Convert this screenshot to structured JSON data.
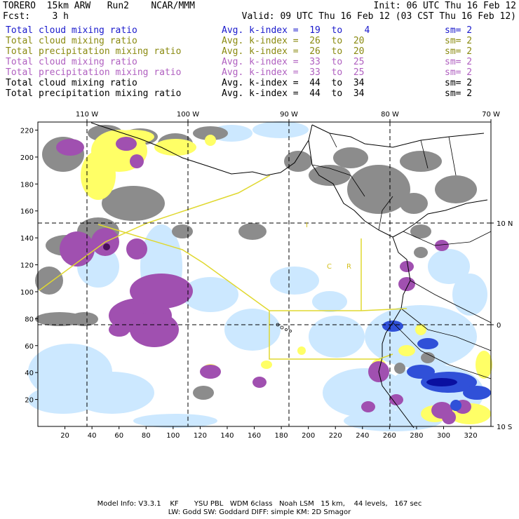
{
  "header": {
    "model": "TORERO  15km ARW   Run2    NCAR/MMM",
    "init": "Init: 06 UTC Thu 16 Feb 12",
    "fcst": "Fcst:    3 h",
    "valid": "Valid: 09 UTC Thu 16 Feb 12 (03 CST Thu 16 Feb 12)"
  },
  "legend_rows": [
    {
      "field": "Total cloud mixing ratio",
      "kindex": "Avg. k-index =  19  to    4",
      "sm": "sm= 2",
      "color": "#1a1acc"
    },
    {
      "field": "Total cloud mixing ratio",
      "kindex": "Avg. k-index =  26  to  20",
      "sm": "sm= 2",
      "color": "#8a8a10"
    },
    {
      "field": "Total precipitation mixing ratio",
      "kindex": "Avg. k-index =  26  to  20",
      "sm": "sm= 2",
      "color": "#8a8a10"
    },
    {
      "field": "Total cloud mixing ratio",
      "kindex": "Avg. k-index =  33  to  25",
      "sm": "sm= 2",
      "color": "#b060c0"
    },
    {
      "field": "Total precipitation mixing ratio",
      "kindex": "Avg. k-index =  33  to  25",
      "sm": "sm= 2",
      "color": "#b060c0"
    },
    {
      "field": "Total cloud mixing ratio",
      "kindex": "Avg. k-index =  44  to  34",
      "sm": "sm= 2",
      "color": "#000000"
    },
    {
      "field": "Total precipitation mixing ratio",
      "kindex": "Avg. k-index =  44  to  34",
      "sm": "sm= 2",
      "color": "#000000"
    }
  ],
  "map": {
    "top_lon_labels": [
      "110 W",
      "100 W",
      "90 W",
      "80 W",
      "70 W"
    ],
    "right_lat_labels": [
      "10 N",
      "0",
      "10 S"
    ],
    "x_ticks": [
      "20",
      "40",
      "60",
      "80",
      "100",
      "120",
      "140",
      "160",
      "180",
      "200",
      "220",
      "240",
      "260",
      "280",
      "300",
      "320"
    ],
    "y_ticks": [
      "220",
      "200",
      "180",
      "160",
      "140",
      "120",
      "100",
      "80",
      "60",
      "40",
      "20"
    ],
    "region_labels": [
      "I",
      "C",
      "R"
    ],
    "colors": {
      "gray": "#8c8c8c",
      "purple": "#a050b0",
      "yellow": "#ffff66",
      "light_blue": "#cce8ff",
      "blue": "#3050d8",
      "dark_blue": "#0a10a0",
      "yellow_line": "#e0d830"
    }
  },
  "footer": {
    "line1": "Model Info: V3.3.1    KF       YSU PBL   WDM 6class   Noah LSM   15 km,    44 levels,   167 sec",
    "line2": "LW: Godd SW: Goddard DIFF: simple KM: 2D Smagor"
  }
}
